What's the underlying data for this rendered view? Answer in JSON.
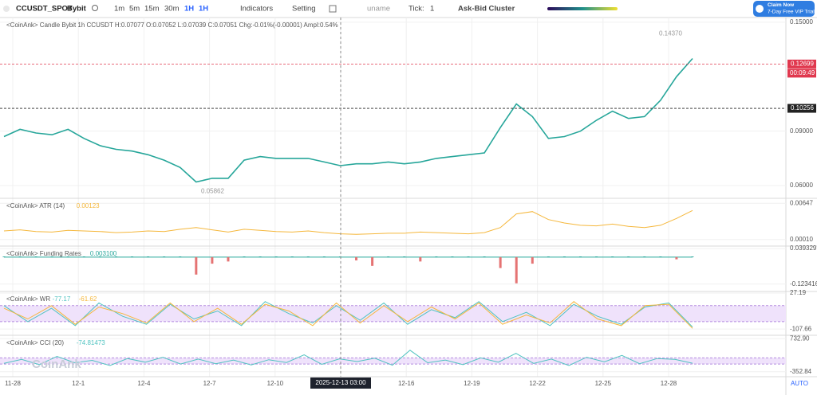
{
  "toolbar": {
    "symbol": "CCUSDT_SPOT",
    "exchange": "Bybit",
    "intervals": [
      "1m",
      "5m",
      "15m",
      "30m",
      "1H"
    ],
    "selected_interval": "1H",
    "indicators": "Indicators",
    "setting": "Setting",
    "user": "uname",
    "tick_label": "Tick:",
    "tick_value": "1",
    "cluster": "Ask-Bid Cluster",
    "promo": {
      "title": "Claim Now",
      "subtitle": "7-Day Free VIP Trial"
    }
  },
  "chart": {
    "x_labels": [
      "11-28",
      "12-1",
      "12-4",
      "12-7",
      "12-10",
      null,
      "12-16",
      "12-19",
      "12-22",
      "12-25",
      "12-28"
    ],
    "crosshair_label": "2025-12-13 03:00",
    "scale_mode": "AUTO",
    "watermark": "CoinAnk",
    "panels": [
      {
        "legend": "<CoinAnk> Candle  Bybit 1h CCUSDT H:0.07077 O:0.07052 L:0.07039 C:0.07051 Chg:-0.01%(-0.00001) Ampl:0.54%",
        "ylim": [
          0.053,
          0.1526
        ],
        "yticks": [
          {
            "value": 0.15,
            "label": "0.15000"
          },
          {
            "value": 0.09,
            "label": "0.09000"
          },
          {
            "value": 0.06,
            "label": "0.06000"
          }
        ],
        "series": [
          {
            "color": "#26a69a",
            "values": [
              0.087,
              0.091,
              0.089,
              0.088,
              0.091,
              0.086,
              0.082,
              0.08,
              0.079,
              0.077,
              0.074,
              0.07,
              0.062,
              0.064,
              0.064,
              0.074,
              0.076,
              0.075,
              0.075,
              0.075,
              0.073,
              0.071,
              0.072,
              0.072,
              0.073,
              0.072,
              0.073,
              0.075,
              0.076,
              0.077,
              0.078,
              0.092,
              0.105,
              0.098,
              0.086,
              0.087,
              0.09,
              0.096,
              0.101,
              0.097,
              0.098,
              0.107,
              0.12,
              0.13
            ]
          }
        ],
        "high_label": {
          "value": 0.1437,
          "label": "0.14370"
        },
        "low_label": {
          "value": 0.05862,
          "label": "0.05862"
        },
        "price_tags": [
          {
            "value": 0.12699,
            "label": "0.12699",
            "countdown": "00:09:49",
            "color": "#e0384e"
          },
          {
            "value": 0.10256,
            "label": "0.10256",
            "color": "#222222"
          }
        ]
      },
      {
        "legend": "<CoinAnk> ATR  (14)",
        "legend_values": [
          "0.00123"
        ],
        "ylim": [
          -0.00106,
          0.00734
        ],
        "yticks": [
          0.00647,
          {
            "value": 0.0001,
            "label": "0.00010"
          }
        ],
        "series": [
          {
            "color": "#f5b73b",
            "values": [
              0.0016,
              0.0018,
              0.0015,
              0.0014,
              0.0017,
              0.0016,
              0.0015,
              0.0013,
              0.0014,
              0.0016,
              0.0015,
              0.0019,
              0.0022,
              0.0018,
              0.0014,
              0.0019,
              0.0017,
              0.0015,
              0.0014,
              0.0016,
              0.0013,
              0.0011,
              0.001,
              0.0011,
              0.0012,
              0.0012,
              0.0014,
              0.0013,
              0.0012,
              0.0011,
              0.0013,
              0.0022,
              0.0046,
              0.005,
              0.0036,
              0.003,
              0.0026,
              0.0025,
              0.0028,
              0.0024,
              0.0022,
              0.0026,
              0.0038,
              0.0052
            ]
          }
        ]
      },
      {
        "legend": "<CoinAnk> Funding Rates",
        "legend_values": [
          "0.003100"
        ],
        "ylim": [
          -0.1575,
          0.0507
        ],
        "yticks": [
          0.039329,
          -0.123416
        ],
        "bars": {
          "color": "#26a69a",
          "negative_color": "#e57373",
          "values": [
            0.003,
            0.003,
            0.003,
            0.003,
            0.003,
            0.003,
            0.003,
            0.003,
            0.003,
            0.003,
            0.003,
            0.003,
            -0.08,
            -0.03,
            -0.02,
            0.003,
            0.003,
            0.003,
            0.003,
            0.003,
            0.003,
            0.003,
            -0.015,
            -0.04,
            0.003,
            0.003,
            -0.02,
            0.003,
            0.003,
            0.003,
            0.003,
            -0.05,
            -0.12,
            -0.03,
            0.003,
            0.003,
            0.003,
            0.003,
            0.003,
            0.003,
            0.003,
            0.003,
            -0.01,
            0.003
          ]
        }
      },
      {
        "legend": "<CoinAnk> WR",
        "legend_values": [
          "-77.17",
          "-61.62"
        ],
        "ylim": [
          -131.1,
          33.05
        ],
        "yticks": [
          27.19,
          -107.66
        ],
        "band": [
          -80,
          -20
        ],
        "series": [
          {
            "color": "#4fc3c0",
            "values": [
              -20,
              -80,
              -30,
              -95,
              -10,
              -60,
              -90,
              -15,
              -70,
              -40,
              -95,
              -5,
              -50,
              -85,
              -20,
              -75,
              -10,
              -90,
              -35,
              -65,
              -5,
              -80,
              -45,
              -95,
              -15,
              -60,
              -90,
              -25,
              -10,
              -100
            ]
          },
          {
            "color": "#f5b73b",
            "values": [
              -30,
              -70,
              -20,
              -90,
              -25,
              -50,
              -85,
              -10,
              -80,
              -30,
              -90,
              -15,
              -40,
              -95,
              -10,
              -85,
              -20,
              -80,
              -25,
              -70,
              -10,
              -90,
              -55,
              -85,
              -5,
              -70,
              -95,
              -20,
              -15,
              -105
            ]
          }
        ]
      },
      {
        "legend": "<CoinAnk> CCI  (20)",
        "legend_values": [
          "-74.81473"
        ],
        "ylim": [
          -515.7,
          841.5
        ],
        "yticks": [
          {
            "value": 732.9,
            "label": "732.90"
          },
          -352.84
        ],
        "band": [
          -100,
          100
        ],
        "series": [
          {
            "color": "#4fc3c0",
            "values": [
              -80,
              50,
              -120,
              150,
              -60,
              20,
              -150,
              80,
              -40,
              120,
              -100,
              60,
              -90,
              30,
              -130,
              40,
              -50,
              200,
              -110,
              70,
              -20,
              90,
              -140,
              350,
              -60,
              30,
              -120,
              100,
              -40,
              250,
              -80,
              60,
              -150,
              120,
              -30,
              180,
              -90,
              80,
              50,
              -75
            ]
          }
        ]
      }
    ]
  }
}
